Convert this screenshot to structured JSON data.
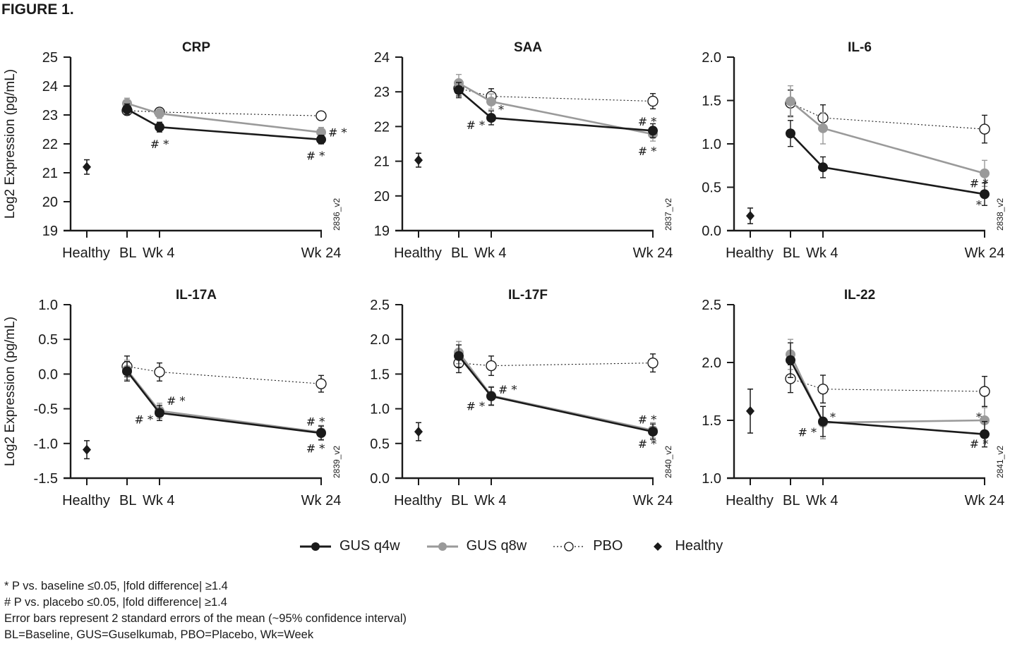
{
  "figure_title": "FIGURE 1.",
  "legend": [
    {
      "name": "GUS q4w",
      "style": "solid-filled",
      "color": "#1a1a1a"
    },
    {
      "name": "GUS q8w",
      "style": "solid-filled",
      "color": "#9a9a9a"
    },
    {
      "name": "PBO",
      "style": "dotted-open",
      "color": "#1a1a1a"
    },
    {
      "name": "Healthy",
      "style": "diamond",
      "color": "#1a1a1a"
    }
  ],
  "footnotes": [
    "*  P vs. baseline ≤0.05,  |fold difference|  ≥1.4",
    "#  P vs. placebo ≤0.05,  |fold difference|  ≥1.4",
    "Error bars represent 2 standard errors of the mean (~95% confidence interval)",
    "BL=Baseline, GUS=Guselkumab, PBO=Placebo, Wk=Week"
  ],
  "chart_data": [
    {
      "type": "line",
      "title": "CRP",
      "ylabel": "Log2 Expression (pg/mL)",
      "xlabel": "",
      "categories": [
        "Healthy",
        "BL",
        "Wk 4",
        "Wk 24"
      ],
      "ylim": [
        19,
        25
      ],
      "yticks": [
        "19",
        "20",
        "21",
        "22",
        "23",
        "24",
        "25"
      ],
      "code": "2836_v2",
      "healthy": {
        "value": 21.2,
        "err": 0.25
      },
      "series": [
        {
          "name": "GUS q4w",
          "values": [
            23.2,
            22.58,
            22.15
          ],
          "err": [
            0.18,
            0.17,
            0.15
          ]
        },
        {
          "name": "GUS q8w",
          "values": [
            23.4,
            23.05,
            22.4
          ],
          "err": [
            0.18,
            0.17,
            0.17
          ]
        },
        {
          "name": "PBO",
          "values": [
            23.15,
            23.1,
            22.97
          ],
          "err": [
            0.15,
            0.15,
            0.15
          ]
        }
      ],
      "annotations": [
        {
          "text": "# *",
          "x": "Wk 4",
          "y": 22.0
        },
        {
          "text": "# *",
          "x": "Wk 24",
          "y": 22.4,
          "side": "right"
        },
        {
          "text": "# *",
          "x": "Wk 24",
          "y": 21.6
        }
      ]
    },
    {
      "type": "line",
      "title": "SAA",
      "ylabel": "",
      "xlabel": "",
      "categories": [
        "Healthy",
        "BL",
        "Wk 4",
        "Wk 24"
      ],
      "ylim": [
        19,
        24
      ],
      "yticks": [
        "19",
        "20",
        "21",
        "22",
        "23",
        "24"
      ],
      "code": "2837_v2",
      "healthy": {
        "value": 21.03,
        "err": 0.2
      },
      "series": [
        {
          "name": "GUS q4w",
          "values": [
            23.05,
            22.25,
            21.88
          ],
          "err": [
            0.22,
            0.2,
            0.2
          ]
        },
        {
          "name": "GUS q8w",
          "values": [
            23.25,
            22.72,
            21.78
          ],
          "err": [
            0.25,
            0.22,
            0.2
          ]
        },
        {
          "name": "PBO",
          "values": [
            23.1,
            22.87,
            22.73
          ],
          "err": [
            0.22,
            0.22,
            0.22
          ]
        }
      ],
      "annotations": [
        {
          "text": "*",
          "x": "Wk 4",
          "y": 22.5,
          "side": "right"
        },
        {
          "text": "# *",
          "x": "Wk 4",
          "y": 22.05,
          "side": "left"
        },
        {
          "text": "# *",
          "x": "Wk 24",
          "y": 22.15
        },
        {
          "text": "# *",
          "x": "Wk 24",
          "y": 21.3
        }
      ]
    },
    {
      "type": "line",
      "title": "IL-6",
      "ylabel": "",
      "xlabel": "",
      "categories": [
        "Healthy",
        "BL",
        "Wk 4",
        "Wk 24"
      ],
      "ylim": [
        0,
        2
      ],
      "yticks": [
        "0.0",
        "0.5",
        "1.0",
        "1.5",
        "2.0"
      ],
      "code": "2838_v2",
      "healthy": {
        "value": 0.17,
        "err": 0.09
      },
      "series": [
        {
          "name": "GUS q4w",
          "values": [
            1.12,
            0.73,
            0.42
          ],
          "err": [
            0.15,
            0.12,
            0.13
          ]
        },
        {
          "name": "GUS q8w",
          "values": [
            1.49,
            1.18,
            0.66
          ],
          "err": [
            0.18,
            0.18,
            0.15
          ]
        },
        {
          "name": "PBO",
          "values": [
            1.47,
            1.3,
            1.17
          ],
          "err": [
            0.15,
            0.15,
            0.16
          ]
        }
      ],
      "annotations": [
        {
          "text": "# *",
          "x": "Wk 24",
          "y": 0.55
        },
        {
          "text": "*",
          "x": "Wk 24",
          "y": 0.3
        }
      ]
    },
    {
      "type": "line",
      "title": "IL-17A",
      "ylabel": "Log2 Expression (pg/mL)",
      "xlabel": "",
      "categories": [
        "Healthy",
        "BL",
        "Wk 4",
        "Wk 24"
      ],
      "ylim": [
        -1.5,
        1.0
      ],
      "yticks": [
        "-1.5",
        "-1.0",
        "-0.5",
        "0.0",
        "0.5",
        "1.0"
      ],
      "code": "2839_v2",
      "healthy": {
        "value": -1.09,
        "err": 0.13
      },
      "series": [
        {
          "name": "GUS q4w",
          "values": [
            0.04,
            -0.56,
            -0.85
          ],
          "err": [
            0.14,
            0.11,
            0.1
          ]
        },
        {
          "name": "GUS q8w",
          "values": [
            0.06,
            -0.53,
            -0.84
          ],
          "err": [
            0.14,
            0.11,
            0.1
          ]
        },
        {
          "name": "PBO",
          "values": [
            0.11,
            0.03,
            -0.14
          ],
          "err": [
            0.15,
            0.13,
            0.12
          ]
        }
      ],
      "annotations": [
        {
          "text": "# *",
          "x": "Wk 4",
          "y": -0.38,
          "side": "right"
        },
        {
          "text": "# *",
          "x": "Wk 4",
          "y": -0.65,
          "side": "left"
        },
        {
          "text": "# *",
          "x": "Wk 24",
          "y": -0.68
        },
        {
          "text": "# *",
          "x": "Wk 24",
          "y": -1.07
        }
      ]
    },
    {
      "type": "line",
      "title": "IL-17F",
      "ylabel": "",
      "xlabel": "",
      "categories": [
        "Healthy",
        "BL",
        "Wk 4",
        "Wk 24"
      ],
      "ylim": [
        0,
        2.5
      ],
      "yticks": [
        "0.0",
        "0.5",
        "1.0",
        "1.5",
        "2.0",
        "2.5"
      ],
      "code": "2840_v2",
      "healthy": {
        "value": 0.67,
        "err": 0.13
      },
      "series": [
        {
          "name": "GUS q4w",
          "values": [
            1.76,
            1.18,
            0.67
          ],
          "err": [
            0.16,
            0.13,
            0.11
          ]
        },
        {
          "name": "GUS q8w",
          "values": [
            1.81,
            1.19,
            0.69
          ],
          "err": [
            0.16,
            0.13,
            0.11
          ]
        },
        {
          "name": "PBO",
          "values": [
            1.66,
            1.62,
            1.66
          ],
          "err": [
            0.14,
            0.14,
            0.13
          ]
        }
      ],
      "annotations": [
        {
          "text": "# *",
          "x": "Wk 4",
          "y": 1.28,
          "side": "right"
        },
        {
          "text": "# *",
          "x": "Wk 4",
          "y": 1.04,
          "side": "left"
        },
        {
          "text": "# *",
          "x": "Wk 24",
          "y": 0.85
        },
        {
          "text": "# *",
          "x": "Wk 24",
          "y": 0.5
        }
      ]
    },
    {
      "type": "line",
      "title": "IL-22",
      "ylabel": "",
      "xlabel": "",
      "categories": [
        "Healthy",
        "BL",
        "Wk 4",
        "Wk 24"
      ],
      "ylim": [
        1.0,
        2.5
      ],
      "yticks": [
        "1.0",
        "1.5",
        "2.0",
        "2.5"
      ],
      "code": "2841_v2",
      "healthy": {
        "value": 1.58,
        "err": 0.19
      },
      "series": [
        {
          "name": "GUS q4w",
          "values": [
            2.02,
            1.49,
            1.38
          ],
          "err": [
            0.15,
            0.13,
            0.11
          ]
        },
        {
          "name": "GUS q8w",
          "values": [
            2.07,
            1.48,
            1.5
          ],
          "err": [
            0.13,
            0.14,
            0.11
          ]
        },
        {
          "name": "PBO",
          "values": [
            1.86,
            1.77,
            1.75
          ],
          "err": [
            0.12,
            0.12,
            0.13
          ]
        }
      ],
      "annotations": [
        {
          "text": "*",
          "x": "Wk 4",
          "y": 1.53,
          "side": "right"
        },
        {
          "text": "# *",
          "x": "Wk 4",
          "y": 1.4,
          "side": "left"
        },
        {
          "text": "*",
          "x": "Wk 24",
          "y": 1.53
        },
        {
          "text": "# *",
          "x": "Wk 24",
          "y": 1.3
        }
      ]
    }
  ]
}
